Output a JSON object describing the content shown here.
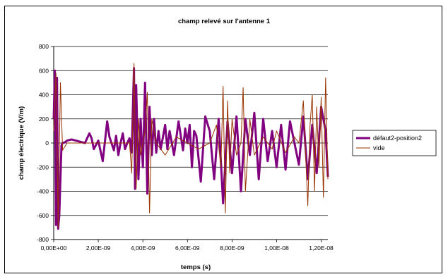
{
  "chart_data": {
    "type": "line",
    "title": "champ relevé sur l'antenne 1",
    "xlabel": "temps (s)",
    "ylabel": "champ électrique (V/m)",
    "xlim": [
      0,
      1.23e-08
    ],
    "ylim": [
      -800,
      800
    ],
    "x_ticks": [
      0,
      2e-09,
      4e-09,
      6e-09,
      8e-09,
      1e-08,
      1.2e-08
    ],
    "x_tick_labels": [
      "0,00E+00",
      "2,00E-09",
      "4,00E-09",
      "6,00E-09",
      "8,00E-09",
      "1,00E-08",
      "1,20E-08"
    ],
    "y_ticks": [
      -800,
      -600,
      -400,
      -200,
      0,
      200,
      400,
      600,
      800
    ],
    "y_tick_labels": [
      "-800",
      "-600",
      "-400",
      "-200",
      "0",
      "200",
      "400",
      "600",
      "800"
    ],
    "grid": "horizontal",
    "legend_position": "right",
    "series": [
      {
        "name": "défaut2-position2",
        "color": "#800080",
        "x": [
          0,
          5e-11,
          1e-10,
          1.5e-10,
          2e-10,
          2.5e-10,
          3e-10,
          3.5e-10,
          4e-10,
          5e-10,
          6e-10,
          8e-10,
          1e-09,
          1.2e-09,
          1.4e-09,
          1.6e-09,
          1.7e-09,
          1.8e-09,
          2e-09,
          2.2e-09,
          2.4e-09,
          2.5e-09,
          2.7e-09,
          2.8e-09,
          2.9e-09,
          3e-09,
          3.1e-09,
          3.2e-09,
          3.3e-09,
          3.4e-09,
          3.5e-09,
          3.6e-09,
          3.65e-09,
          3.7e-09,
          3.8e-09,
          3.9e-09,
          4e-09,
          4.1e-09,
          4.2e-09,
          4.3e-09,
          4.4e-09,
          4.5e-09,
          4.6e-09,
          4.7e-09,
          4.8e-09,
          4.9e-09,
          5e-09,
          5.1e-09,
          5.2e-09,
          5.4e-09,
          5.6e-09,
          5.8e-09,
          5.9e-09,
          6e-09,
          6.1e-09,
          6.2e-09,
          6.3e-09,
          6.4e-09,
          6.6e-09,
          6.8e-09,
          7e-09,
          7.2e-09,
          7.4e-09,
          7.6e-09,
          7.8e-09,
          8e-09,
          8.2e-09,
          8.4e-09,
          8.6e-09,
          8.8e-09,
          9e-09,
          9.2e-09,
          9.4e-09,
          9.6e-09,
          9.8e-09,
          1e-08,
          1.02e-08,
          1.04e-08,
          1.06e-08,
          1.08e-08,
          1.1e-08,
          1.12e-08,
          1.14e-08,
          1.16e-08,
          1.18e-08,
          1.2e-08,
          1.22e-08,
          1.23e-08
        ],
        "values": [
          200,
          600,
          -680,
          540,
          -710,
          -600,
          -300,
          -20,
          0,
          5,
          20,
          30,
          20,
          10,
          0,
          80,
          40,
          -50,
          20,
          -150,
          180,
          50,
          -60,
          60,
          -100,
          0,
          80,
          -50,
          0,
          40,
          -80,
          620,
          -380,
          480,
          -300,
          200,
          -200,
          500,
          -420,
          300,
          -100,
          200,
          -80,
          100,
          -50,
          50,
          150,
          -50,
          100,
          -100,
          180,
          -60,
          120,
          0,
          150,
          -200,
          100,
          60,
          -320,
          220,
          100,
          -300,
          200,
          -500,
          180,
          -250,
          220,
          -400,
          200,
          -100,
          250,
          -300,
          200,
          -150,
          100,
          -200,
          150,
          -220,
          180,
          0,
          -180,
          220,
          -300,
          150,
          -250,
          300,
          100,
          -280
        ]
      },
      {
        "name": "vide",
        "color": "#993300",
        "x": [
          0,
          1e-10,
          2e-10,
          3e-10,
          4e-10,
          6e-10,
          1e-09,
          2e-09,
          3e-09,
          3.4e-09,
          3.5e-09,
          3.6e-09,
          3.7e-09,
          3.8e-09,
          3.9e-09,
          4e-09,
          4.1e-09,
          4.2e-09,
          4.3e-09,
          4.4e-09,
          4.6e-09,
          5e-09,
          5.5e-09,
          6e-09,
          6.5e-09,
          7e-09,
          7.3e-09,
          7.5e-09,
          7.6e-09,
          7.7e-09,
          7.8e-09,
          7.9e-09,
          8e-09,
          8.2e-09,
          8.4e-09,
          8.5e-09,
          8.6e-09,
          8.8e-09,
          9e-09,
          9.4e-09,
          9.8e-09,
          1e-08,
          1.04e-08,
          1.08e-08,
          1.1e-08,
          1.12e-08,
          1.14e-08,
          1.15e-08,
          1.16e-08,
          1.17e-08,
          1.18e-08,
          1.19e-08,
          1.2e-08,
          1.21e-08,
          1.22e-08,
          1.23e-08
        ],
        "values": [
          100,
          580,
          -700,
          500,
          -60,
          0,
          0,
          0,
          0,
          0,
          -250,
          660,
          -380,
          200,
          -100,
          0,
          100,
          420,
          -580,
          200,
          0,
          -100,
          50,
          0,
          -50,
          0,
          150,
          -200,
          470,
          -580,
          350,
          -250,
          200,
          -100,
          0,
          460,
          -400,
          200,
          -100,
          50,
          -50,
          100,
          -80,
          50,
          0,
          350,
          -520,
          150,
          400,
          -400,
          300,
          -200,
          380,
          -450,
          540,
          -300
        ]
      }
    ]
  }
}
